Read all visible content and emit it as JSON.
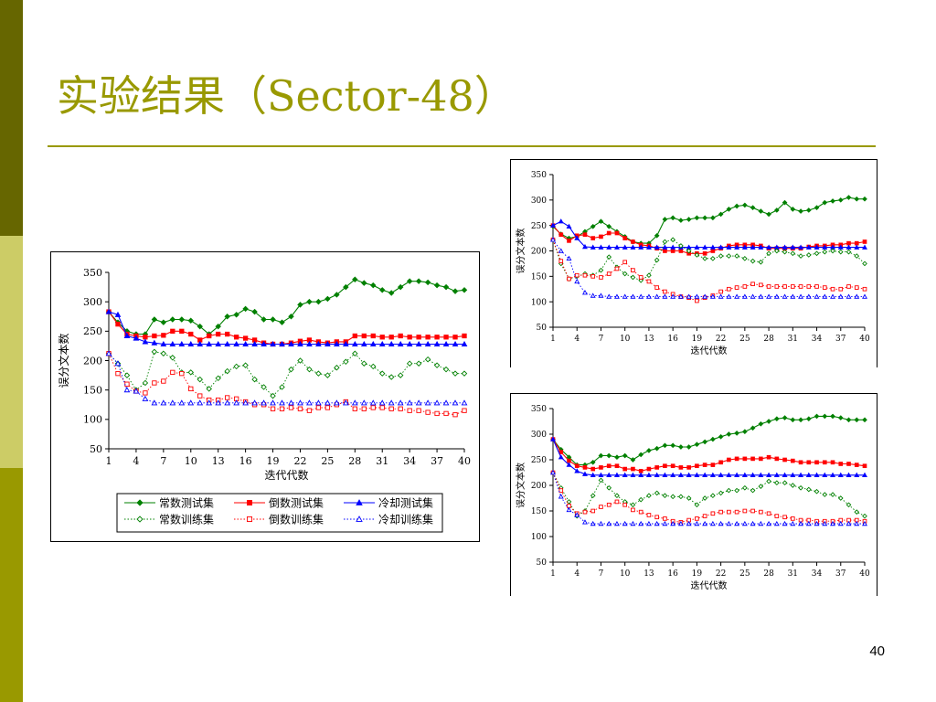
{
  "slide": {
    "title": "实验结果（Sector-48）",
    "page_number": "40",
    "accent_color": "#999900",
    "left_bar_colors": [
      "#666600",
      "#cccc66",
      "#999900"
    ]
  },
  "chart_data": [
    {
      "type": "line",
      "ylabel": "误分文本数",
      "xlabel": "迭代代数",
      "ylim": [
        50,
        350
      ],
      "yticks": [
        50,
        100,
        150,
        200,
        250,
        300,
        350
      ],
      "xticks": [
        1,
        4,
        7,
        10,
        13,
        16,
        19,
        22,
        25,
        28,
        31,
        34,
        37,
        40
      ],
      "x": [
        1,
        2,
        3,
        4,
        5,
        6,
        7,
        8,
        9,
        10,
        11,
        12,
        13,
        14,
        15,
        16,
        17,
        18,
        19,
        20,
        21,
        22,
        23,
        24,
        25,
        26,
        27,
        28,
        29,
        30,
        31,
        32,
        33,
        34,
        35,
        36,
        37,
        38,
        39,
        40
      ],
      "legend": "bottom",
      "series": [
        {
          "name": "常数测试集",
          "color": "#008000",
          "marker": "diamond",
          "style": "solid",
          "values": [
            283,
            265,
            250,
            245,
            245,
            270,
            265,
            270,
            270,
            268,
            258,
            245,
            258,
            275,
            278,
            288,
            283,
            270,
            270,
            265,
            275,
            295,
            300,
            300,
            305,
            312,
            325,
            338,
            332,
            328,
            320,
            315,
            325,
            335,
            335,
            333,
            328,
            325,
            318,
            320
          ]
        },
        {
          "name": "倒数测试集",
          "color": "#ff0000",
          "marker": "square",
          "style": "solid",
          "values": [
            283,
            262,
            245,
            242,
            240,
            242,
            243,
            250,
            250,
            245,
            235,
            242,
            245,
            245,
            240,
            238,
            235,
            230,
            228,
            228,
            230,
            233,
            235,
            232,
            230,
            232,
            232,
            242,
            242,
            242,
            240,
            240,
            242,
            240,
            240,
            240,
            240,
            240,
            240,
            242
          ]
        },
        {
          "name": "冷却测试集",
          "color": "#0000ff",
          "marker": "triangle",
          "style": "solid",
          "values": [
            283,
            278,
            242,
            238,
            232,
            230,
            228,
            228,
            228,
            228,
            228,
            228,
            228,
            228,
            228,
            228,
            228,
            228,
            228,
            228,
            228,
            228,
            228,
            228,
            228,
            228,
            228,
            228,
            228,
            228,
            228,
            228,
            228,
            228,
            228,
            228,
            228,
            228,
            228,
            228
          ]
        },
        {
          "name": "常数训练集",
          "color": "#008000",
          "marker": "diamond",
          "style": "dotted",
          "values": [
            212,
            195,
            175,
            150,
            162,
            215,
            212,
            205,
            180,
            180,
            168,
            152,
            170,
            182,
            190,
            192,
            168,
            155,
            140,
            155,
            185,
            200,
            185,
            178,
            175,
            188,
            198,
            212,
            195,
            190,
            178,
            172,
            175,
            195,
            195,
            202,
            192,
            185,
            178,
            178
          ]
        },
        {
          "name": "倒数训练集",
          "color": "#ff0000",
          "marker": "square",
          "style": "dotted",
          "values": [
            212,
            178,
            160,
            148,
            145,
            162,
            165,
            180,
            178,
            152,
            140,
            133,
            133,
            137,
            135,
            130,
            125,
            125,
            118,
            118,
            120,
            118,
            115,
            120,
            120,
            125,
            130,
            118,
            118,
            120,
            120,
            118,
            118,
            115,
            115,
            112,
            110,
            110,
            108,
            115
          ]
        },
        {
          "name": "冷却训练集",
          "color": "#0000ff",
          "marker": "triangle",
          "style": "dotted",
          "values": [
            212,
            195,
            150,
            148,
            135,
            128,
            128,
            128,
            128,
            128,
            128,
            128,
            128,
            128,
            128,
            128,
            128,
            128,
            128,
            128,
            128,
            128,
            128,
            128,
            128,
            128,
            128,
            128,
            128,
            128,
            128,
            128,
            128,
            128,
            128,
            128,
            128,
            128,
            128,
            128
          ]
        }
      ]
    },
    {
      "type": "line",
      "ylabel": "误分文本数",
      "xlabel": "迭代代数",
      "ylim": [
        50,
        350
      ],
      "yticks": [
        50,
        100,
        150,
        200,
        250,
        300,
        350
      ],
      "xticks": [
        1,
        4,
        7,
        10,
        13,
        16,
        19,
        22,
        25,
        28,
        31,
        34,
        37,
        40
      ],
      "x": [
        1,
        2,
        3,
        4,
        5,
        6,
        7,
        8,
        9,
        10,
        11,
        12,
        13,
        14,
        15,
        16,
        17,
        18,
        19,
        20,
        21,
        22,
        23,
        24,
        25,
        26,
        27,
        28,
        29,
        30,
        31,
        32,
        33,
        34,
        35,
        36,
        37,
        38,
        39,
        40
      ],
      "series": [
        {
          "color": "#008000",
          "marker": "diamond",
          "style": "solid",
          "values": [
            248,
            233,
            225,
            228,
            238,
            248,
            258,
            248,
            238,
            228,
            218,
            215,
            215,
            230,
            262,
            265,
            260,
            262,
            265,
            265,
            265,
            272,
            282,
            288,
            290,
            285,
            278,
            272,
            280,
            295,
            282,
            278,
            280,
            285,
            295,
            298,
            300,
            305,
            302,
            302
          ]
        },
        {
          "color": "#ff0000",
          "marker": "square",
          "style": "solid",
          "values": [
            250,
            232,
            220,
            230,
            232,
            225,
            228,
            235,
            235,
            225,
            218,
            212,
            210,
            205,
            200,
            200,
            200,
            195,
            195,
            195,
            200,
            205,
            210,
            212,
            212,
            212,
            210,
            205,
            205,
            205,
            205,
            205,
            208,
            210,
            210,
            212,
            212,
            215,
            215,
            218
          ]
        },
        {
          "color": "#0000ff",
          "marker": "triangle",
          "style": "solid",
          "values": [
            250,
            258,
            248,
            225,
            208,
            207,
            207,
            207,
            207,
            207,
            207,
            207,
            207,
            207,
            207,
            207,
            207,
            207,
            207,
            207,
            207,
            207,
            207,
            207,
            207,
            207,
            207,
            207,
            207,
            207,
            207,
            207,
            207,
            207,
            207,
            207,
            207,
            207,
            207,
            207
          ]
        },
        {
          "color": "#008000",
          "marker": "diamond",
          "style": "dotted",
          "values": [
            222,
            175,
            145,
            150,
            155,
            152,
            162,
            188,
            168,
            155,
            148,
            142,
            152,
            182,
            218,
            222,
            210,
            200,
            192,
            185,
            185,
            190,
            190,
            190,
            185,
            180,
            178,
            195,
            200,
            198,
            195,
            190,
            192,
            195,
            198,
            200,
            198,
            198,
            190,
            175
          ]
        },
        {
          "color": "#ff0000",
          "marker": "square",
          "style": "dotted",
          "values": [
            222,
            180,
            145,
            152,
            152,
            150,
            148,
            155,
            165,
            178,
            162,
            148,
            140,
            128,
            120,
            115,
            110,
            108,
            102,
            108,
            112,
            120,
            125,
            128,
            130,
            135,
            133,
            130,
            130,
            130,
            130,
            130,
            130,
            130,
            128,
            125,
            125,
            130,
            128,
            125
          ]
        },
        {
          "color": "#0000ff",
          "marker": "triangle",
          "style": "dotted",
          "values": [
            222,
            200,
            185,
            140,
            118,
            112,
            112,
            110,
            110,
            110,
            110,
            110,
            110,
            110,
            110,
            110,
            110,
            110,
            110,
            110,
            110,
            110,
            110,
            110,
            110,
            110,
            110,
            110,
            110,
            110,
            110,
            110,
            110,
            110,
            110,
            110,
            110,
            110,
            110,
            110
          ]
        }
      ]
    },
    {
      "type": "line",
      "ylabel": "误分文本数",
      "xlabel": "迭代代数",
      "ylim": [
        50,
        350
      ],
      "yticks": [
        50,
        100,
        150,
        200,
        250,
        300,
        350
      ],
      "xticks": [
        1,
        4,
        7,
        10,
        13,
        16,
        19,
        22,
        25,
        28,
        31,
        34,
        37,
        40
      ],
      "x": [
        1,
        2,
        3,
        4,
        5,
        6,
        7,
        8,
        9,
        10,
        11,
        12,
        13,
        14,
        15,
        16,
        17,
        18,
        19,
        20,
        21,
        22,
        23,
        24,
        25,
        26,
        27,
        28,
        29,
        30,
        31,
        32,
        33,
        34,
        35,
        36,
        37,
        38,
        39,
        40
      ],
      "series": [
        {
          "color": "#008000",
          "marker": "diamond",
          "style": "solid",
          "values": [
            290,
            270,
            255,
            240,
            240,
            245,
            258,
            258,
            255,
            258,
            250,
            260,
            268,
            272,
            278,
            278,
            275,
            275,
            280,
            285,
            290,
            295,
            300,
            302,
            305,
            312,
            320,
            325,
            330,
            332,
            328,
            328,
            330,
            335,
            335,
            335,
            332,
            328,
            328,
            328
          ]
        },
        {
          "color": "#ff0000",
          "marker": "square",
          "style": "solid",
          "values": [
            290,
            265,
            248,
            238,
            235,
            232,
            235,
            238,
            238,
            232,
            232,
            228,
            232,
            235,
            238,
            238,
            235,
            235,
            238,
            240,
            240,
            245,
            250,
            252,
            252,
            252,
            252,
            255,
            252,
            250,
            248,
            245,
            245,
            245,
            245,
            245,
            242,
            242,
            240,
            238
          ]
        },
        {
          "color": "#0000ff",
          "marker": "triangle",
          "style": "solid",
          "values": [
            290,
            255,
            240,
            228,
            222,
            220,
            220,
            220,
            220,
            220,
            220,
            220,
            220,
            220,
            220,
            220,
            220,
            220,
            220,
            220,
            220,
            220,
            220,
            220,
            220,
            220,
            220,
            220,
            220,
            220,
            220,
            220,
            220,
            220,
            220,
            220,
            220,
            220,
            220,
            220
          ]
        },
        {
          "color": "#008000",
          "marker": "diamond",
          "style": "dotted",
          "values": [
            225,
            195,
            168,
            140,
            150,
            180,
            210,
            195,
            180,
            168,
            162,
            172,
            180,
            185,
            180,
            178,
            178,
            175,
            162,
            175,
            180,
            185,
            190,
            190,
            195,
            190,
            198,
            208,
            205,
            205,
            200,
            195,
            192,
            188,
            182,
            182,
            175,
            162,
            148,
            140
          ]
        },
        {
          "color": "#ff0000",
          "marker": "square",
          "style": "dotted",
          "values": [
            225,
            190,
            160,
            145,
            148,
            150,
            158,
            162,
            168,
            162,
            152,
            148,
            142,
            138,
            135,
            130,
            128,
            132,
            135,
            140,
            145,
            148,
            148,
            148,
            150,
            150,
            148,
            145,
            140,
            138,
            135,
            132,
            132,
            130,
            130,
            130,
            132,
            132,
            132,
            130
          ]
        },
        {
          "color": "#0000ff",
          "marker": "triangle",
          "style": "dotted",
          "values": [
            225,
            178,
            152,
            142,
            128,
            125,
            125,
            125,
            125,
            125,
            125,
            125,
            125,
            125,
            125,
            125,
            125,
            125,
            125,
            125,
            125,
            125,
            125,
            125,
            125,
            125,
            125,
            125,
            125,
            125,
            125,
            125,
            125,
            125,
            125,
            125,
            125,
            125,
            125,
            125
          ]
        }
      ]
    }
  ]
}
